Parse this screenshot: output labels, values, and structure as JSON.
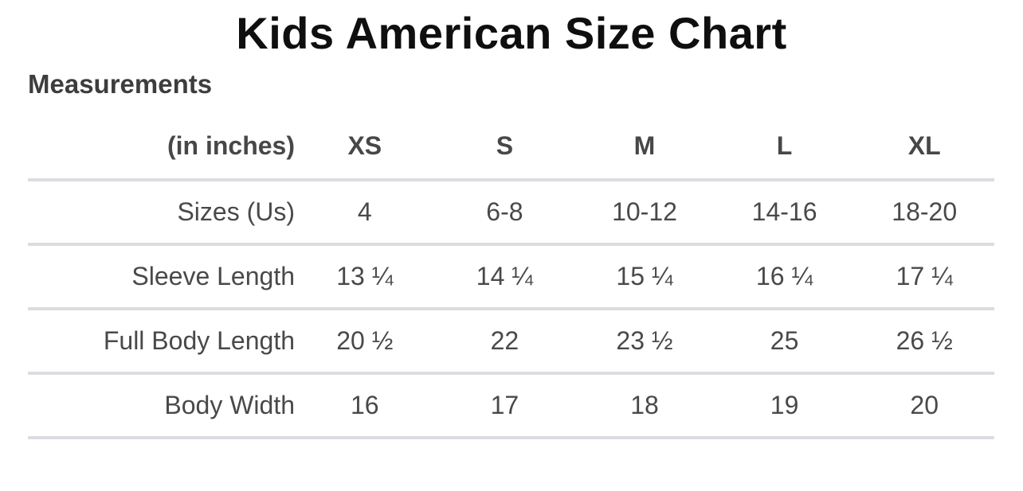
{
  "page": {
    "title": "Kids American Size Chart",
    "section_heading": "Measurements"
  },
  "table": {
    "unit_label": "(in inches)",
    "columns": [
      "XS",
      "S",
      "M",
      "L",
      "XL"
    ],
    "rows": [
      {
        "label": "Sizes (Us)",
        "values": [
          "4",
          "6-8",
          "10-12",
          "14-16",
          "18-20"
        ]
      },
      {
        "label": "Sleeve Length",
        "values": [
          "13 ¼",
          "14 ¼",
          "15 ¼",
          "16 ¼",
          "17 ¼"
        ]
      },
      {
        "label": "Full Body Length",
        "values": [
          "20 ½",
          "22",
          "23 ½",
          "25",
          "26 ½"
        ]
      },
      {
        "label": "Body Width",
        "values": [
          "16",
          "17",
          "18",
          "19",
          "20"
        ]
      }
    ]
  },
  "colors": {
    "background": "#ffffff",
    "title_text": "#0f0f0f",
    "heading_text": "#3d3d3d",
    "table_text": "#494949",
    "divider": "#dcdde1"
  }
}
